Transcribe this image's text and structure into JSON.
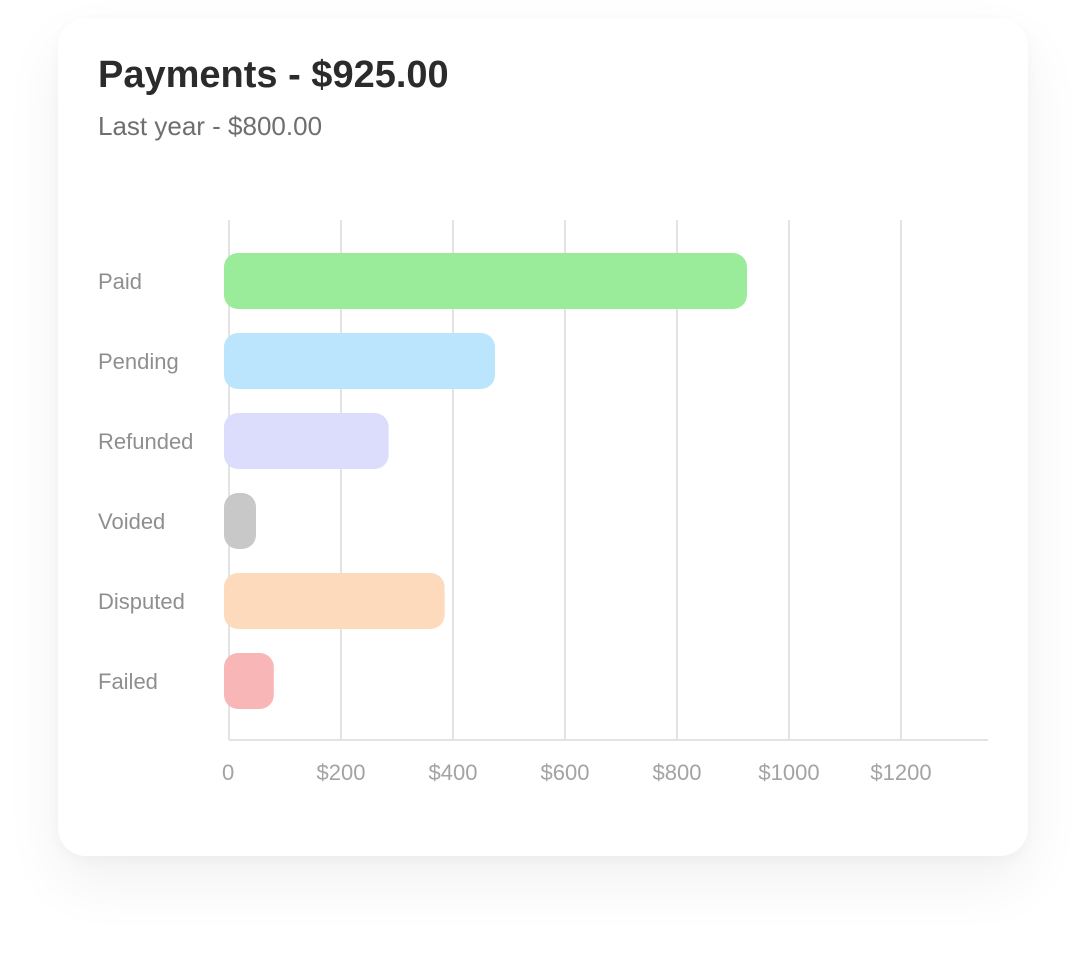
{
  "header": {
    "title": "Payments - $925.00",
    "subtitle": "Last year - $800.00"
  },
  "chart_data": {
    "type": "bar",
    "orientation": "horizontal",
    "title": "Payments - $925.00",
    "subtitle": "Last year - $800.00",
    "xlabel": "",
    "ylabel": "",
    "categories": [
      "Paid",
      "Pending",
      "Refunded",
      "Voided",
      "Disputed",
      "Failed"
    ],
    "values": [
      925,
      475,
      285,
      25,
      385,
      80
    ],
    "colors": [
      "#9aeb9a",
      "#bbe5fd",
      "#dcdcfd",
      "#c8c8c8",
      "#fedabd",
      "#f9b6b6"
    ],
    "xlim": [
      0,
      1350
    ],
    "xticks": [
      0,
      200,
      400,
      600,
      800,
      1000,
      1200
    ],
    "xtick_labels": [
      "0",
      "$200",
      "$400",
      "$600",
      "$800",
      "$1000",
      "$1200"
    ],
    "grid": "vertical",
    "legend": "none"
  }
}
